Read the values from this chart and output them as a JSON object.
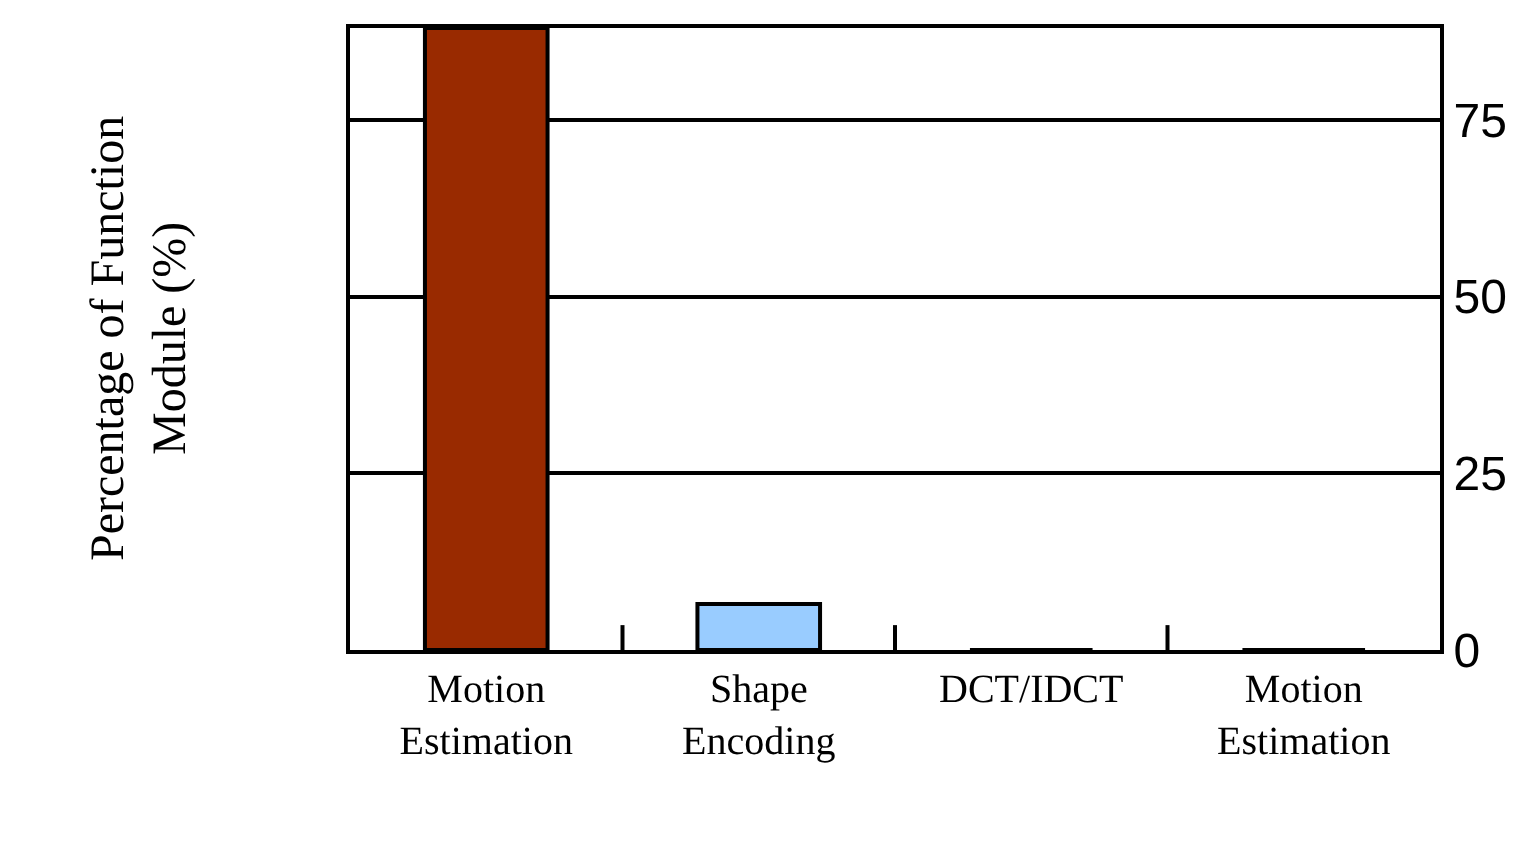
{
  "chart_data": {
    "type": "bar",
    "annotations": [
      "Percentage of Function\nModule (%)"
    ],
    "categories": [
      "Motion Estimation",
      "Shape Encoding",
      "DCT/IDCT",
      "Motion Estimation"
    ],
    "values": [
      88,
      6.5,
      0,
      0
    ],
    "colors": [
      "#992a00",
      "#99ccff",
      "#99ccff",
      "#99ccff"
    ],
    "ylim": [
      0,
      88
    ],
    "yticks": [
      0,
      25,
      50,
      75
    ],
    "grid": "y",
    "legend": false
  }
}
